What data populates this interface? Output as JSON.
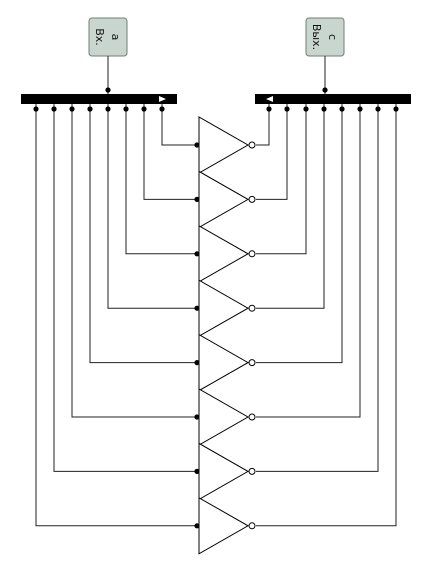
{
  "input_pin": {
    "name": "a",
    "label": "Вх."
  },
  "output_pin": {
    "name": "c",
    "label": "Вых."
  },
  "inverter_count": 8
}
